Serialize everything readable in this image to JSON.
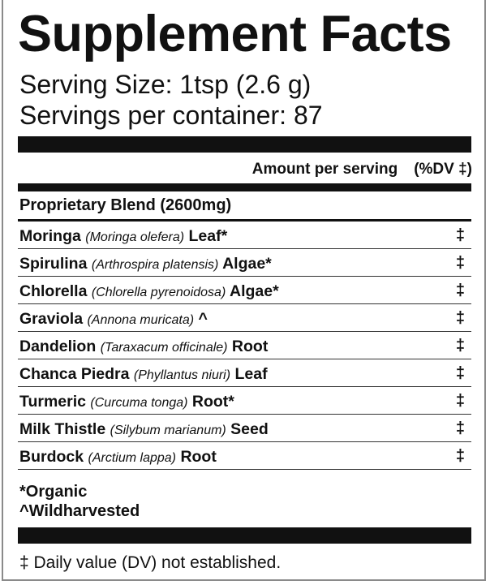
{
  "title": "Supplement Facts",
  "serving_size": "Serving Size: 1tsp (2.6 g)",
  "servings_per_container": "Servings per container: 87",
  "header": {
    "amount": "Amount per serving",
    "dv": "(%DV ‡)"
  },
  "blend": "Proprietary Blend (2600mg)",
  "ingredients": [
    {
      "name": "Moringa",
      "sci": "(Moringa olefera)",
      "part": "Leaf*",
      "dv": "‡"
    },
    {
      "name": "Spirulina",
      "sci": "(Arthrospira platensis)",
      "part": "Algae*",
      "dv": "‡"
    },
    {
      "name": "Chlorella",
      "sci": "(Chlorella pyrenoidosa)",
      "part": "Algae*",
      "dv": "‡"
    },
    {
      "name": "Graviola",
      "sci": "(Annona muricata)",
      "part": "^",
      "dv": "‡"
    },
    {
      "name": "Dandelion",
      "sci": "(Taraxacum officinale)",
      "part": "Root",
      "dv": "‡"
    },
    {
      "name": "Chanca Piedra",
      "sci": "(Phyllantus niuri)",
      "part": "Leaf",
      "dv": "‡"
    },
    {
      "name": "Turmeric",
      "sci": "(Curcuma tonga)",
      "part": "Root*",
      "dv": "‡"
    },
    {
      "name": "Milk Thistle",
      "sci": "(Silybum marianum)",
      "part": "Seed",
      "dv": "‡"
    },
    {
      "name": "Burdock",
      "sci": "(Arctium lappa)",
      "part": "Root",
      "dv": "‡"
    }
  ],
  "notes": [
    "*Organic",
    "^Wildharvested"
  ],
  "footer": "‡  Daily value (DV) not established."
}
